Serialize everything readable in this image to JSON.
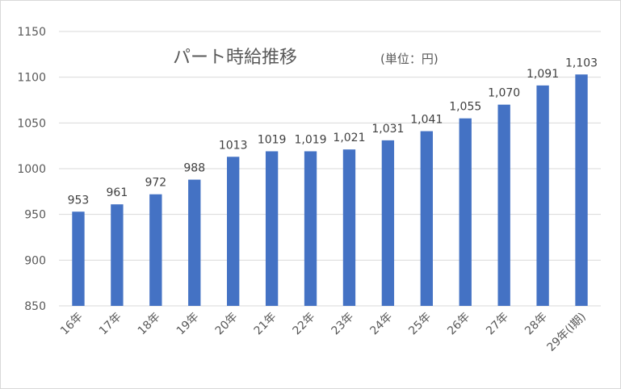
{
  "chart_data": {
    "type": "bar",
    "title": "パート時給推移",
    "subtitle": "(単位：円)",
    "categories": [
      "16年",
      "17年",
      "18年",
      "19年",
      "20年",
      "21年",
      "22年",
      "23年",
      "24年",
      "25年",
      "26年",
      "27年",
      "28年",
      "29年(Ⅰ期)"
    ],
    "values": [
      953,
      961,
      972,
      988,
      1013,
      1019,
      1019,
      1021,
      1031,
      1041,
      1055,
      1070,
      1091,
      1103
    ],
    "data_labels": [
      "953",
      "961",
      "972",
      "988",
      "1013",
      "1019",
      "1,019",
      "1,021",
      "1,031",
      "1,041",
      "1,055",
      "1,070",
      "1,091",
      "1,103"
    ],
    "y_ticks": [
      "850",
      "900",
      "950",
      "1000",
      "1050",
      "1100",
      "1150"
    ],
    "ylim": [
      850,
      1150
    ],
    "xlabel": "",
    "ylabel": "",
    "grid": true,
    "legend": "none",
    "colors": {
      "bar": "#4472c4",
      "grid": "#d9d9d9",
      "text": "#595959"
    }
  }
}
